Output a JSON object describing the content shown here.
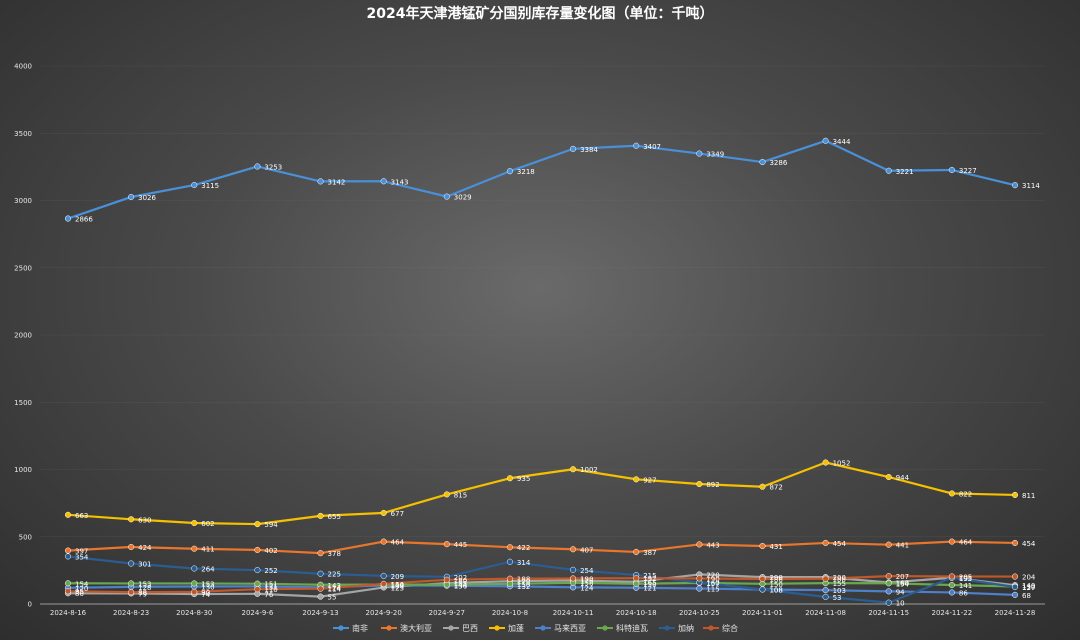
{
  "chart_data": {
    "type": "line",
    "title": "2024年天津港锰矿分国别库存量变化图（单位：千吨）",
    "xlabel": "",
    "ylabel": "",
    "ylim": [
      0,
      4000
    ],
    "yticks": [
      0,
      500,
      1000,
      1500,
      2000,
      2500,
      3000,
      3500,
      4000
    ],
    "grid": true,
    "legend": "bottom",
    "categories": [
      "2024-8-16",
      "2024-8-23",
      "2024-8-30",
      "2024-9-6",
      "2024-9-13",
      "2024-9-20",
      "2024-9-27",
      "2024-10-8",
      "2024-10-11",
      "2024-10-18",
      "2024-10-25",
      "2024-11-01",
      "2024-11-08",
      "2024-11-15",
      "2024-11-22",
      "2024-11-28"
    ],
    "series": [
      {
        "name": "南非",
        "color": "#4a90d9",
        "values": [
          2866,
          3026,
          3115,
          3253,
          3142,
          3143,
          3029,
          3218,
          3384,
          3407,
          3349,
          3286,
          3444,
          3221,
          3227,
          3114
        ]
      },
      {
        "name": "澳大利亚",
        "color": "#e8762c",
        "values": [
          397,
          424,
          411,
          402,
          378,
          464,
          445,
          422,
          407,
          387,
          443,
          431,
          454,
          441,
          464,
          454
        ]
      },
      {
        "name": "巴西",
        "color": "#a5a5a5",
        "values": [
          80,
          79,
          74,
          76,
          55,
          123,
          155,
          170,
          175,
          165,
          220,
          200,
          200,
          160,
          195,
          140
        ]
      },
      {
        "name": "加蓬",
        "color": "#f5c000",
        "values": [
          663,
          630,
          602,
          594,
          655,
          677,
          815,
          935,
          1002,
          927,
          892,
          872,
          1052,
          944,
          822,
          811
        ]
      },
      {
        "name": "马来西亚",
        "color": "#4f7fc8",
        "values": [
          120,
          128,
          130,
          131,
          124,
          138,
          136,
          132,
          124,
          121,
          115,
          108,
          103,
          94,
          86,
          68
        ]
      },
      {
        "name": "科特迪瓦",
        "color": "#6aa84f",
        "values": [
          154,
          153,
          153,
          151,
          143,
          144,
          144,
          150,
          158,
          150,
          157,
          150,
          155,
          154,
          141,
          130
        ]
      },
      {
        "name": "加纳",
        "color": "#2b5d91",
        "values": [
          354,
          301,
          264,
          252,
          225,
          209,
          202,
          314,
          254,
          215,
          160,
          108,
          53,
          10,
          195,
          127
        ]
      },
      {
        "name": "综合",
        "color": "#c0582a",
        "values": [
          95,
          88,
          90,
          110,
          114,
          150,
          180,
          188,
          190,
          192,
          190,
          186,
          188,
          207,
          205,
          204
        ]
      }
    ]
  }
}
